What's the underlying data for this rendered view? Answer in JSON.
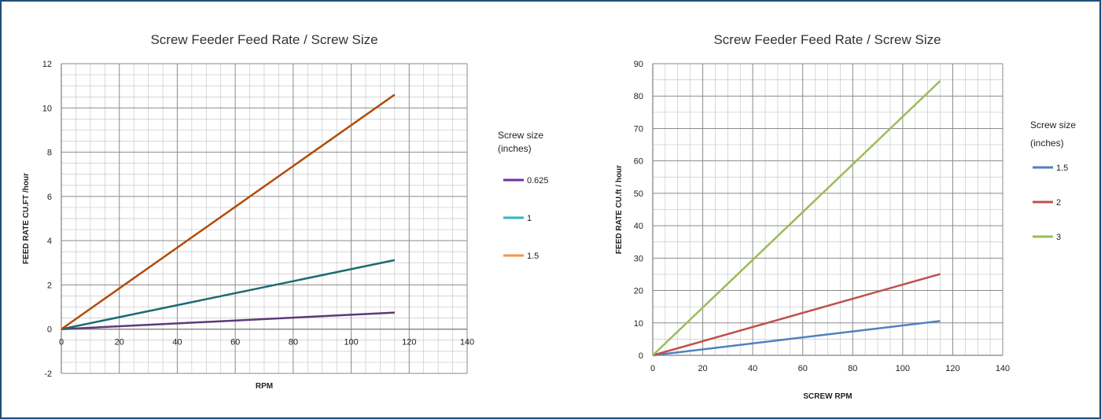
{
  "chart_data": [
    {
      "type": "line",
      "title": "Screw Feeder Feed Rate / Screw Size",
      "xlabel": "RPM",
      "ylabel": "FEED RATE CU.FT /hour",
      "xlim": [
        0,
        140
      ],
      "ylim": [
        -2,
        12
      ],
      "xticks": [
        0,
        20,
        40,
        60,
        80,
        100,
        120,
        140
      ],
      "yticks": [
        -2,
        0,
        2,
        4,
        6,
        8,
        10,
        12
      ],
      "grid": true,
      "legend_title": "Screw size (inches)",
      "legend_title_lines": [
        "Screw size",
        "(inches)"
      ],
      "legend_position": "right",
      "series": [
        {
          "name": "0.625",
          "color": "#5b3a7a",
          "x": [
            0,
            115
          ],
          "y": [
            0,
            0.75
          ]
        },
        {
          "name": "1",
          "color": "#1d6b73",
          "x": [
            0,
            115
          ],
          "y": [
            0,
            3.12
          ]
        },
        {
          "name": "1.5",
          "color": "#b24a0a",
          "x": [
            0,
            115
          ],
          "y": [
            0,
            10.6
          ]
        }
      ],
      "legend_colors": [
        "#7030a0",
        "#31b6c6",
        "#f79646"
      ]
    },
    {
      "type": "line",
      "title": "Screw Feeder Feed Rate / Screw Size",
      "xlabel": "SCREW RPM",
      "ylabel": "FEED RATE CU.ft / hour",
      "xlim": [
        0,
        140
      ],
      "ylim": [
        0,
        90
      ],
      "xticks": [
        0,
        20,
        40,
        60,
        80,
        100,
        120,
        140
      ],
      "yticks": [
        0,
        10,
        20,
        30,
        40,
        50,
        60,
        70,
        80,
        90
      ],
      "grid": true,
      "legend_title": "Screw size (inches)",
      "legend_title_lines": [
        "Screw size",
        "(inches)"
      ],
      "legend_position": "right",
      "series": [
        {
          "name": "1.5",
          "color": "#4f81bd",
          "x": [
            0,
            115
          ],
          "y": [
            0,
            10.6
          ]
        },
        {
          "name": "2",
          "color": "#c0504d",
          "x": [
            0,
            115
          ],
          "y": [
            0,
            25.1
          ]
        },
        {
          "name": "3",
          "color": "#9bbb59",
          "x": [
            0,
            115
          ],
          "y": [
            0,
            84.7
          ]
        }
      ],
      "legend_colors": [
        "#4f81bd",
        "#c0504d",
        "#9bbb59"
      ]
    }
  ]
}
